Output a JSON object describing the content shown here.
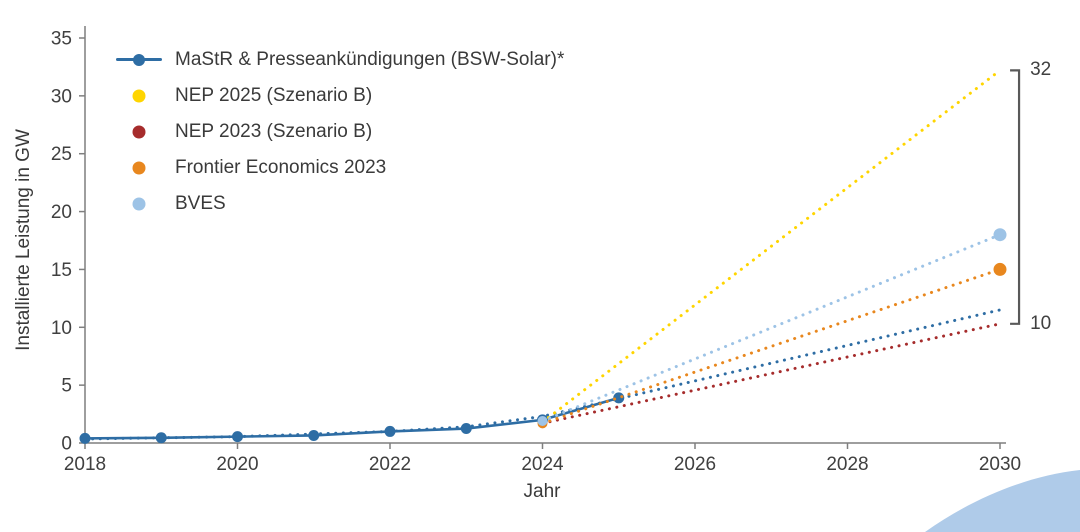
{
  "chart_data": {
    "type": "line",
    "title": "",
    "xlabel": "Jahr",
    "ylabel": "Installierte Leistung in GW",
    "xlim": [
      2018,
      2030
    ],
    "ylim": [
      0,
      35
    ],
    "xticks": [
      2018,
      2020,
      2022,
      2024,
      2026,
      2028,
      2030
    ],
    "yticks": [
      0,
      5,
      10,
      15,
      20,
      25,
      30,
      35
    ],
    "grid": false,
    "legend_position": "top-left-inside",
    "axis_color": "#7f7f7f",
    "text_color": "#404040",
    "series": [
      {
        "name": "MaStR & Presseankündigungen (BSW-Solar)*",
        "legend": true,
        "color": "#2E6DA4",
        "line": "solid",
        "marker": "circle",
        "marker_size": 5.5,
        "points": [
          [
            2018,
            0.4
          ],
          [
            2019,
            0.45
          ],
          [
            2020,
            0.55
          ],
          [
            2021,
            0.65
          ],
          [
            2022,
            1.0
          ],
          [
            2023,
            1.25
          ],
          [
            2024,
            2.0
          ],
          [
            2025,
            3.9
          ]
        ]
      },
      {
        "name": "MaStR Trend (gepunktet)",
        "legend": false,
        "color": "#2E6DA4",
        "line": "dotted",
        "marker": "none",
        "points": [
          [
            2018,
            0.35
          ],
          [
            2020,
            0.55
          ],
          [
            2022,
            1.0
          ],
          [
            2023,
            1.4
          ],
          [
            2024,
            2.3
          ],
          [
            2030,
            11.5
          ]
        ]
      },
      {
        "name": "NEP 2025 (Szenario B)",
        "legend": true,
        "color": "#FFD500",
        "line": "dotted",
        "marker": "none",
        "points": [
          [
            2024,
            1.8
          ],
          [
            2030,
            32.2
          ]
        ]
      },
      {
        "name": "NEP 2023 (Szenario B)",
        "legend": true,
        "color": "#A62C2C",
        "line": "dotted",
        "marker": "none",
        "points": [
          [
            2024,
            1.7
          ],
          [
            2030,
            10.3
          ]
        ]
      },
      {
        "name": "Frontier Economics 2023",
        "legend": true,
        "color": "#E8871E",
        "line": "dotted",
        "marker": "endpoints",
        "marker_size": 6.5,
        "points": [
          [
            2024,
            1.7
          ],
          [
            2030,
            15
          ]
        ]
      },
      {
        "name": "BVES",
        "legend": true,
        "color": "#9DC3E6",
        "line": "dotted",
        "marker": "endpoints",
        "marker_size": 6.5,
        "points": [
          [
            2024,
            1.9
          ],
          [
            2030,
            18
          ]
        ]
      }
    ],
    "range_bracket": {
      "x": 2030.25,
      "from": 10.3,
      "to": 32.2,
      "top_label": "32",
      "bottom_label": "10",
      "color": "#595959"
    }
  },
  "decor": {
    "corner_color": "#AFCBE9"
  }
}
